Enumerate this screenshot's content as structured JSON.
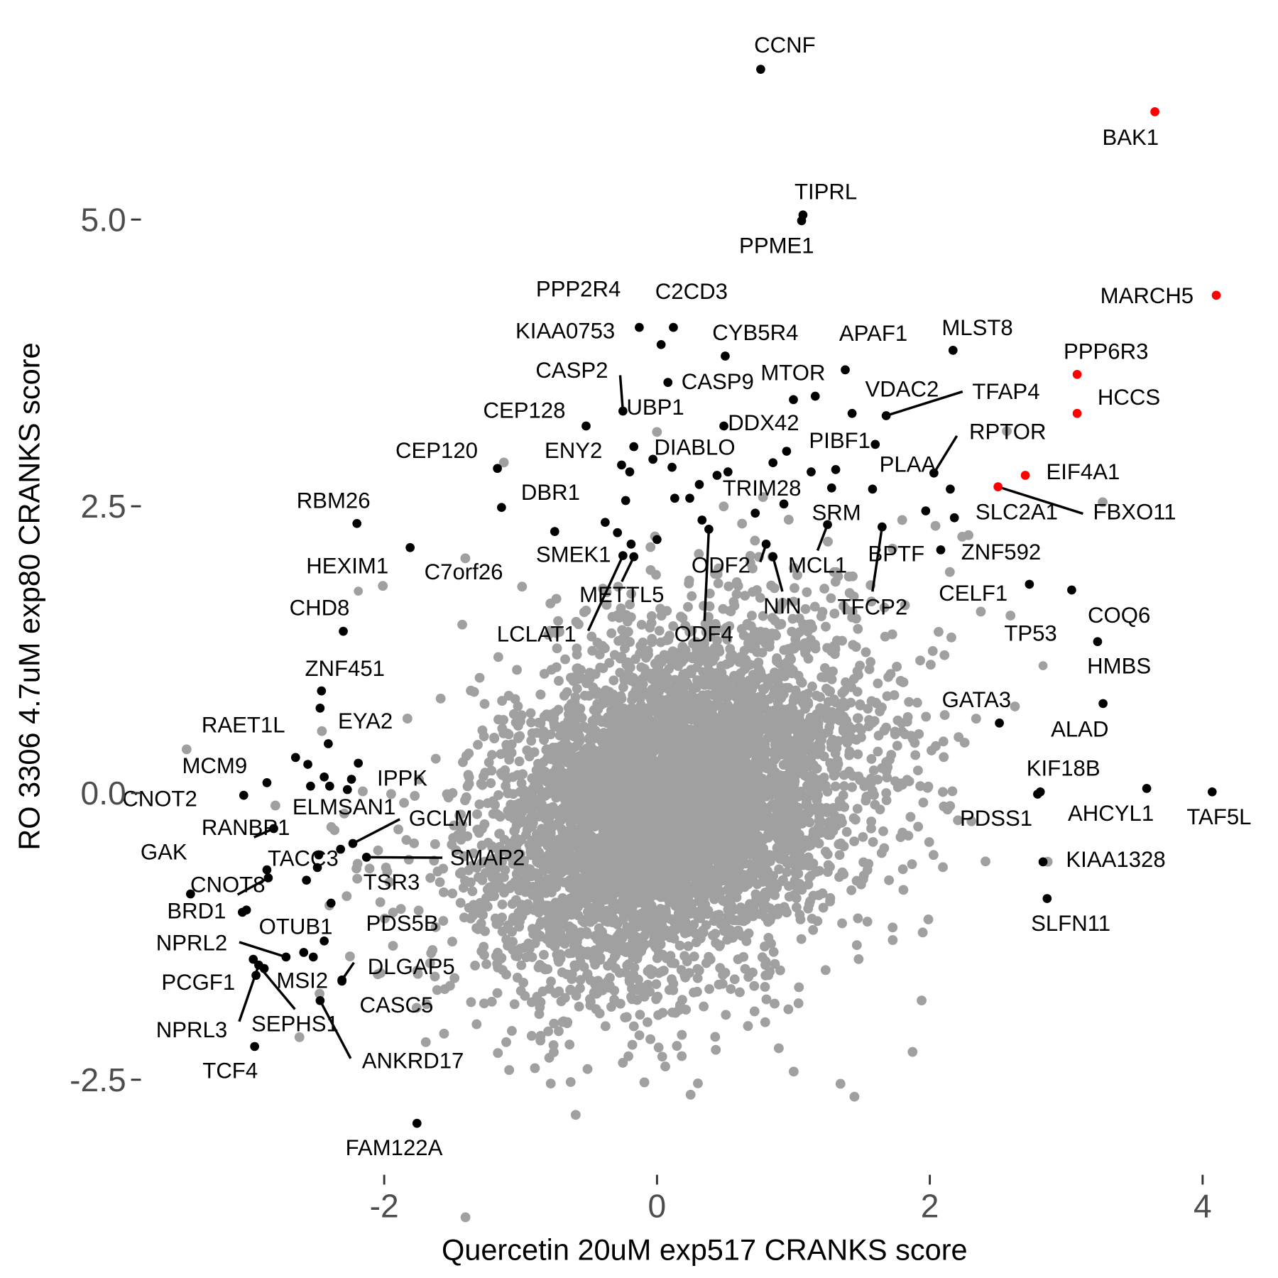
{
  "chart_data": {
    "type": "scatter",
    "xlabel": "Quercetin 20uM exp517 CRANKS score",
    "ylabel": "RO 3306 4.7uM exp80 CRANKS score",
    "xlim": [
      -3.74,
      4.43
    ],
    "ylim": [
      -3.37,
      6.7
    ],
    "x_ticks": [
      {
        "value": -2,
        "label": "-2"
      },
      {
        "value": 0,
        "label": "0"
      },
      {
        "value": 2,
        "label": "2"
      },
      {
        "value": 4,
        "label": "4"
      }
    ],
    "y_ticks": [
      {
        "value": -2.5,
        "label": "-2.5"
      },
      {
        "value": 0,
        "label": "0.0"
      },
      {
        "value": 2.5,
        "label": "2.5"
      },
      {
        "value": 5,
        "label": "5.0"
      }
    ],
    "grid": false,
    "colors": {
      "background_genes": "#a0a0a0",
      "highlighted": "#000000",
      "top_hits": "#ff0000"
    },
    "background_distribution": {
      "approx_count": 6000,
      "x_center": 0.1,
      "y_center": -0.1,
      "color": "#a0a0a0"
    },
    "points": [
      {
        "label": "CCNF",
        "x": 0.76,
        "y": 6.31,
        "color": "#000000"
      },
      {
        "label": "BAK1",
        "x": 3.65,
        "y": 5.94,
        "color": "#ff0000"
      },
      {
        "label": "TIPRL",
        "x": 1.07,
        "y": 5.04,
        "color": "#000000"
      },
      {
        "label": "PPME1",
        "x": 1.06,
        "y": 4.99,
        "color": "#000000"
      },
      {
        "label": "MARCH5",
        "x": 4.1,
        "y": 4.34,
        "color": "#ff0000"
      },
      {
        "label": "PPP2R4",
        "x": -0.13,
        "y": 4.06,
        "color": "#000000"
      },
      {
        "label": "C2CD3",
        "x": 0.12,
        "y": 4.06,
        "color": "#000000"
      },
      {
        "label": "KIAA0753",
        "x": 0.03,
        "y": 3.91,
        "color": "#000000"
      },
      {
        "label": "CYB5R4",
        "x": 0.5,
        "y": 3.81,
        "color": "#000000"
      },
      {
        "label": "APAF1",
        "x": 1.38,
        "y": 3.69,
        "color": "#000000"
      },
      {
        "label": "MLST8",
        "x": 2.17,
        "y": 3.86,
        "color": "#000000"
      },
      {
        "label": "PPP6R3",
        "x": 3.08,
        "y": 3.65,
        "color": "#ff0000"
      },
      {
        "label": "HCCS",
        "x": 3.08,
        "y": 3.31,
        "color": "#ff0000"
      },
      {
        "label": "CASP2",
        "x": -0.25,
        "y": 3.33,
        "color": "#000000"
      },
      {
        "label": "CASP9",
        "x": 0.08,
        "y": 3.58,
        "color": "#000000"
      },
      {
        "label": "MTOR",
        "x": 1.0,
        "y": 3.43,
        "color": "#000000"
      },
      {
        "label": "VDAC2",
        "x": 1.43,
        "y": 3.31,
        "color": "#000000"
      },
      {
        "label": "TFAP4",
        "x": 1.68,
        "y": 3.29,
        "color": "#000000"
      },
      {
        "label": "UBP1",
        "x": -0.17,
        "y": 3.02,
        "color": "#000000"
      },
      {
        "label": "CEP128",
        "x": -0.52,
        "y": 3.2,
        "color": "#000000"
      },
      {
        "label": "DDX42",
        "x": 0.49,
        "y": 3.2,
        "color": "#000000"
      },
      {
        "label": "PIBF1",
        "x": 0.95,
        "y": 2.98,
        "color": "#000000"
      },
      {
        "label": "RPTOR",
        "x": 2.03,
        "y": 2.79,
        "color": "#000000"
      },
      {
        "label": "PLAA",
        "x": 1.6,
        "y": 3.04,
        "color": "#000000"
      },
      {
        "label": "ENY2",
        "x": -0.26,
        "y": 2.86,
        "color": "#000000"
      },
      {
        "label": "DIABLO",
        "x": -0.03,
        "y": 2.91,
        "color": "#000000"
      },
      {
        "label": "CEP120",
        "x": -1.17,
        "y": 2.83,
        "color": "#000000"
      },
      {
        "label": "EIF4A1",
        "x": 2.7,
        "y": 2.77,
        "color": "#ff0000"
      },
      {
        "label": "TRIM28",
        "x": 0.44,
        "y": 2.77,
        "color": "#000000"
      },
      {
        "label": "SLC2A1",
        "x": 2.18,
        "y": 2.4,
        "color": "#000000"
      },
      {
        "label": "FBXO11",
        "x": 2.5,
        "y": 2.67,
        "color": "#ff0000"
      },
      {
        "label": "DBR1",
        "x": -1.14,
        "y": 2.49,
        "color": "#000000"
      },
      {
        "label": "RBM26",
        "x": -2.2,
        "y": 2.35,
        "color": "#000000"
      },
      {
        "label": "SRM",
        "x": 1.28,
        "y": 2.66,
        "color": "#000000"
      },
      {
        "label": "HEXIM1",
        "x": -2.19,
        "y": 1.76,
        "color": "#a0a0a0"
      },
      {
        "label": "C7orf26",
        "x": -1.81,
        "y": 2.14,
        "color": "#000000"
      },
      {
        "label": "SMEK1",
        "x": -0.19,
        "y": 2.17,
        "color": "#000000"
      },
      {
        "label": "ODF2",
        "x": 0.8,
        "y": 2.17,
        "color": "#000000"
      },
      {
        "label": "MCL1",
        "x": 1.25,
        "y": 2.34,
        "color": "#000000"
      },
      {
        "label": "BPTF",
        "x": 1.58,
        "y": 2.65,
        "color": "#000000"
      },
      {
        "label": "ZNF592",
        "x": 2.08,
        "y": 2.12,
        "color": "#000000"
      },
      {
        "label": "METTL5",
        "x": -0.17,
        "y": 2.06,
        "color": "#000000"
      },
      {
        "label": "LCLAT1",
        "x": -0.25,
        "y": 2.07,
        "color": "#000000"
      },
      {
        "label": "ODF4",
        "x": 0.38,
        "y": 2.3,
        "color": "#000000"
      },
      {
        "label": "NIN",
        "x": 0.85,
        "y": 2.06,
        "color": "#000000"
      },
      {
        "label": "TFCP2",
        "x": 1.65,
        "y": 2.32,
        "color": "#000000"
      },
      {
        "label": "CELF1",
        "x": 2.73,
        "y": 1.82,
        "color": "#000000"
      },
      {
        "label": "COQ6",
        "x": 3.04,
        "y": 1.77,
        "color": "#000000"
      },
      {
        "label": "CHD8",
        "x": -2.3,
        "y": 1.41,
        "color": "#000000"
      },
      {
        "label": "TP53",
        "x": 2.83,
        "y": 1.11,
        "color": "#a0a0a0"
      },
      {
        "label": "HMBS",
        "x": 3.23,
        "y": 1.32,
        "color": "#000000"
      },
      {
        "label": "ZNF451",
        "x": -2.46,
        "y": 0.89,
        "color": "#000000"
      },
      {
        "label": "GATA3",
        "x": 2.51,
        "y": 0.61,
        "color": "#000000"
      },
      {
        "label": "ALAD",
        "x": 3.27,
        "y": 0.78,
        "color": "#000000"
      },
      {
        "label": "RAET1L",
        "x": -2.65,
        "y": 0.31,
        "color": "#000000"
      },
      {
        "label": "EYA2",
        "x": -2.41,
        "y": 0.43,
        "color": "#000000"
      },
      {
        "label": "MCM9",
        "x": -2.86,
        "y": 0.09,
        "color": "#000000"
      },
      {
        "label": "IPPK",
        "x": -2.19,
        "y": 0.26,
        "color": "#000000"
      },
      {
        "label": "KIF18B",
        "x": 2.81,
        "y": 0.01,
        "color": "#000000"
      },
      {
        "label": "AHCYL1",
        "x": 3.59,
        "y": 0.04,
        "color": "#000000"
      },
      {
        "label": "TAF5L",
        "x": 4.07,
        "y": 0.01,
        "color": "#000000"
      },
      {
        "label": "PDSS1",
        "x": 2.79,
        "y": -0.01,
        "color": "#000000"
      },
      {
        "label": "CNOT2",
        "x": -3.03,
        "y": -0.02,
        "color": "#000000"
      },
      {
        "label": "RANBP1",
        "x": -2.81,
        "y": -0.31,
        "color": "#000000"
      },
      {
        "label": "ELMSAN1",
        "x": -2.32,
        "y": -0.49,
        "color": "#000000"
      },
      {
        "label": "GCLM",
        "x": -2.23,
        "y": -0.44,
        "color": "#000000"
      },
      {
        "label": "TACC3",
        "x": -2.48,
        "y": -0.54,
        "color": "#000000"
      },
      {
        "label": "SMAP2",
        "x": -2.13,
        "y": -0.56,
        "color": "#000000"
      },
      {
        "label": "GAK",
        "x": -3.42,
        "y": -0.88,
        "color": "#000000"
      },
      {
        "label": "CNOT8",
        "x": -2.85,
        "y": -0.74,
        "color": "#000000"
      },
      {
        "label": "TSR3",
        "x": -2.39,
        "y": -0.96,
        "color": "#000000"
      },
      {
        "label": "BRD1",
        "x": -3.04,
        "y": -1.04,
        "color": "#000000"
      },
      {
        "label": "OTUB1",
        "x": -2.44,
        "y": -1.29,
        "color": "#000000"
      },
      {
        "label": "PDS5B",
        "x": -2.59,
        "y": -1.39,
        "color": "#000000"
      },
      {
        "label": "NPRL2",
        "x": -2.72,
        "y": -1.43,
        "color": "#000000"
      },
      {
        "label": "DLGAP5",
        "x": -2.31,
        "y": -1.63,
        "color": "#000000"
      },
      {
        "label": "PCGF1",
        "x": -2.94,
        "y": -1.59,
        "color": "#000000"
      },
      {
        "label": "MSI2",
        "x": -2.88,
        "y": -1.53,
        "color": "#000000"
      },
      {
        "label": "CASC5",
        "x": -2.31,
        "y": -1.64,
        "color": "#000000"
      },
      {
        "label": "SEPHS1",
        "x": -2.96,
        "y": -1.45,
        "color": "#000000"
      },
      {
        "label": "NPRL3",
        "x": -2.92,
        "y": -1.5,
        "color": "#000000"
      },
      {
        "label": "ANKRD17",
        "x": -2.47,
        "y": -1.81,
        "color": "#000000"
      },
      {
        "label": "TCF4",
        "x": -2.95,
        "y": -2.21,
        "color": "#000000"
      },
      {
        "label": "SLFN11",
        "x": 2.86,
        "y": -0.92,
        "color": "#000000"
      },
      {
        "label": "KIAA1328",
        "x": 2.83,
        "y": -0.6,
        "color": "#000000"
      },
      {
        "label": "FAM122A",
        "x": -1.76,
        "y": -2.88,
        "color": "#000000"
      },
      {
        "label": "",
        "x": -0.29,
        "y": 2.27,
        "color": "#000000"
      },
      {
        "label": "",
        "x": -0.38,
        "y": 2.36,
        "color": "#000000"
      },
      {
        "label": "",
        "x": -0.75,
        "y": 2.28,
        "color": "#000000"
      },
      {
        "label": "",
        "x": 0.0,
        "y": 2.21,
        "color": "#000000"
      },
      {
        "label": "",
        "x": 0.33,
        "y": 2.38,
        "color": "#000000"
      },
      {
        "label": "",
        "x": 0.13,
        "y": 2.57,
        "color": "#000000"
      },
      {
        "label": "",
        "x": 0.24,
        "y": 2.57,
        "color": "#000000"
      },
      {
        "label": "",
        "x": 0.31,
        "y": 2.69,
        "color": "#000000"
      },
      {
        "label": "",
        "x": 0.52,
        "y": 2.8,
        "color": "#000000"
      },
      {
        "label": "",
        "x": 0.72,
        "y": 2.44,
        "color": "#000000"
      },
      {
        "label": "",
        "x": 0.85,
        "y": 2.88,
        "color": "#000000"
      },
      {
        "label": "",
        "x": 1.13,
        "y": 2.8,
        "color": "#000000"
      },
      {
        "label": "",
        "x": 1.31,
        "y": 2.82,
        "color": "#000000"
      },
      {
        "label": "",
        "x": 0.93,
        "y": 2.52,
        "color": "#000000"
      },
      {
        "label": "",
        "x": 1.97,
        "y": 2.46,
        "color": "#000000"
      },
      {
        "label": "",
        "x": 2.15,
        "y": 2.65,
        "color": "#000000"
      },
      {
        "label": "",
        "x": 1.16,
        "y": 3.46,
        "color": "#000000"
      },
      {
        "label": "",
        "x": 0.11,
        "y": 2.84,
        "color": "#000000"
      },
      {
        "label": "",
        "x": -0.2,
        "y": 2.8,
        "color": "#000000"
      },
      {
        "label": "",
        "x": -0.23,
        "y": 2.55,
        "color": "#000000"
      },
      {
        "label": "",
        "x": -2.47,
        "y": 0.74,
        "color": "#000000"
      },
      {
        "label": "",
        "x": -2.56,
        "y": 0.25,
        "color": "#000000"
      },
      {
        "label": "",
        "x": -2.44,
        "y": 0.14,
        "color": "#000000"
      },
      {
        "label": "",
        "x": -2.4,
        "y": 0.06,
        "color": "#000000"
      },
      {
        "label": "",
        "x": -2.27,
        "y": 0.03,
        "color": "#000000"
      },
      {
        "label": "",
        "x": -2.24,
        "y": 0.12,
        "color": "#000000"
      },
      {
        "label": "",
        "x": -2.54,
        "y": 0.06,
        "color": "#000000"
      },
      {
        "label": "",
        "x": -2.57,
        "y": -0.76,
        "color": "#000000"
      },
      {
        "label": "",
        "x": -2.86,
        "y": -0.67,
        "color": "#000000"
      },
      {
        "label": "",
        "x": -2.49,
        "y": -0.65,
        "color": "#000000"
      },
      {
        "label": "",
        "x": -2.52,
        "y": -1.43,
        "color": "#000000"
      },
      {
        "label": "",
        "x": -3.01,
        "y": -1.02,
        "color": "#000000"
      }
    ]
  }
}
